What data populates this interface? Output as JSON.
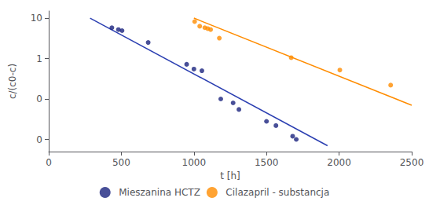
{
  "chart_data": {
    "type": "scatter",
    "xlabel": "t [h]",
    "ylabel": "c/(c0-c)",
    "xlim": [
      0,
      2500
    ],
    "xticks": [
      0,
      500,
      1000,
      1500,
      2000,
      2500
    ],
    "ylim": [
      0.005,
      15
    ],
    "yticks": [
      10,
      1,
      {
        "value": 0.1,
        "label": "0"
      },
      {
        "value": 0.01,
        "label": "0"
      }
    ],
    "log": "y",
    "grid": false,
    "legend": "bottom",
    "series": [
      {
        "type": "line",
        "color": "#2a3eb1",
        "x": [
          285,
          1920
        ],
        "values": [
          10.0,
          0.007
        ]
      },
      {
        "type": "line",
        "color": "#ff8c00",
        "x": [
          1000,
          2500
        ],
        "values": [
          10.0,
          0.07
        ]
      },
      {
        "type": "scatter",
        "name": "Mieszanina HCTZ",
        "color": "#1a237e",
        "x": [
          435,
          480,
          505,
          685,
          950,
          1000,
          1055,
          1185,
          1270,
          1310,
          1500,
          1565,
          1680,
          1705
        ],
        "values": [
          5.8,
          5.2,
          4.9,
          2.5,
          0.72,
          0.55,
          0.5,
          0.1,
          0.08,
          0.055,
          0.028,
          0.022,
          0.012,
          0.01
        ]
      },
      {
        "type": "scatter",
        "name": "Cilazapril - substancja",
        "color": "#ff8c00",
        "x": [
          1005,
          1040,
          1075,
          1095,
          1115,
          1175,
          1670,
          2005,
          2355
        ],
        "values": [
          8.2,
          6.3,
          5.8,
          5.5,
          5.2,
          3.2,
          1.05,
          0.52,
          0.22
        ]
      }
    ]
  }
}
